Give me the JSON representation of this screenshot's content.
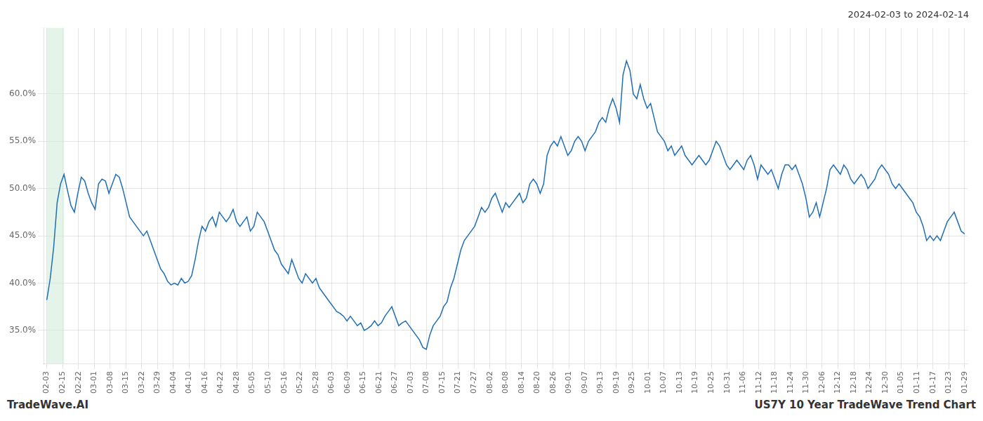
{
  "chart_data": {
    "type": "line",
    "title": "2024-02-03 to 2024-02-14",
    "annotations": [
      "TradeWave.AI",
      "US7Y 10 Year TradeWave Trend Chart"
    ],
    "color": "#1f6eb5",
    "grid": true,
    "shade": {
      "xlim": [
        0.0,
        1.1
      ],
      "color": "#d4edda"
    },
    "ylim": [
      31.5,
      67.0
    ],
    "yticks": [
      {
        "value": 35.0,
        "label": "35.0%"
      },
      {
        "value": 40.0,
        "label": "40.0%"
      },
      {
        "value": 45.0,
        "label": "45.0%"
      },
      {
        "value": 50.0,
        "label": "50.0%"
      },
      {
        "value": 55.0,
        "label": "55.0%"
      },
      {
        "value": 60.0,
        "label": "60.0%"
      }
    ],
    "xlim": [
      -0.2,
      58.2
    ],
    "xticks": [
      {
        "value": 0,
        "label": "02-03"
      },
      {
        "value": 1,
        "label": "02-15"
      },
      {
        "value": 2,
        "label": "02-22"
      },
      {
        "value": 3,
        "label": "03-01"
      },
      {
        "value": 4,
        "label": "03-08"
      },
      {
        "value": 5,
        "label": "03-15"
      },
      {
        "value": 6,
        "label": "03-22"
      },
      {
        "value": 7,
        "label": "03-29"
      },
      {
        "value": 8,
        "label": "04-04"
      },
      {
        "value": 9,
        "label": "04-10"
      },
      {
        "value": 10,
        "label": "04-16"
      },
      {
        "value": 11,
        "label": "04-22"
      },
      {
        "value": 12,
        "label": "04-28"
      },
      {
        "value": 13,
        "label": "05-05"
      },
      {
        "value": 14,
        "label": "05-10"
      },
      {
        "value": 15,
        "label": "05-16"
      },
      {
        "value": 16,
        "label": "05-22"
      },
      {
        "value": 17,
        "label": "05-28"
      },
      {
        "value": 18,
        "label": "06-03"
      },
      {
        "value": 19,
        "label": "06-09"
      },
      {
        "value": 20,
        "label": "06-15"
      },
      {
        "value": 21,
        "label": "06-21"
      },
      {
        "value": 22,
        "label": "06-27"
      },
      {
        "value": 23,
        "label": "07-03"
      },
      {
        "value": 24,
        "label": "07-08"
      },
      {
        "value": 25,
        "label": "07-15"
      },
      {
        "value": 26,
        "label": "07-21"
      },
      {
        "value": 27,
        "label": "07-27"
      },
      {
        "value": 28,
        "label": "08-02"
      },
      {
        "value": 29,
        "label": "08-08"
      },
      {
        "value": 30,
        "label": "08-14"
      },
      {
        "value": 31,
        "label": "08-20"
      },
      {
        "value": 32,
        "label": "08-26"
      },
      {
        "value": 33,
        "label": "09-01"
      },
      {
        "value": 34,
        "label": "09-07"
      },
      {
        "value": 35,
        "label": "09-13"
      },
      {
        "value": 36,
        "label": "09-19"
      },
      {
        "value": 37,
        "label": "09-25"
      },
      {
        "value": 38,
        "label": "10-01"
      },
      {
        "value": 39,
        "label": "10-07"
      },
      {
        "value": 40,
        "label": "10-13"
      },
      {
        "value": 41,
        "label": "10-19"
      },
      {
        "value": 42,
        "label": "10-25"
      },
      {
        "value": 43,
        "label": "10-31"
      },
      {
        "value": 44,
        "label": "11-06"
      },
      {
        "value": 45,
        "label": "11-12"
      },
      {
        "value": 46,
        "label": "11-18"
      },
      {
        "value": 47,
        "label": "11-24"
      },
      {
        "value": 48,
        "label": "11-30"
      },
      {
        "value": 49,
        "label": "12-06"
      },
      {
        "value": 50,
        "label": "12-12"
      },
      {
        "value": 51,
        "label": "12-18"
      },
      {
        "value": 52,
        "label": "12-24"
      },
      {
        "value": 53,
        "label": "12-30"
      },
      {
        "value": 54,
        "label": "01-05"
      },
      {
        "value": 55,
        "label": "01-11"
      },
      {
        "value": 56,
        "label": "01-17"
      },
      {
        "value": 57,
        "label": "01-23"
      },
      {
        "value": 58,
        "label": "01-29"
      }
    ],
    "values": [
      38.2,
      40.5,
      43.8,
      48.5,
      50.5,
      51.5,
      49.8,
      48.2,
      47.5,
      49.5,
      51.2,
      50.8,
      49.5,
      48.5,
      47.8,
      50.5,
      51.0,
      50.8,
      49.5,
      50.5,
      51.5,
      51.2,
      50.0,
      48.5,
      47.0,
      46.5,
      46.0,
      45.5,
      45.0,
      45.5,
      44.5,
      43.5,
      42.5,
      41.5,
      41.0,
      40.2,
      39.8,
      40.0,
      39.8,
      40.5,
      40.0,
      40.2,
      40.8,
      42.5,
      44.5,
      46.0,
      45.5,
      46.5,
      47.0,
      46.0,
      47.5,
      47.0,
      46.5,
      47.0,
      47.8,
      46.5,
      46.0,
      46.5,
      47.0,
      45.5,
      46.0,
      47.5,
      47.0,
      46.5,
      45.5,
      44.5,
      43.5,
      43.0,
      42.0,
      41.5,
      41.0,
      42.5,
      41.5,
      40.5,
      40.0,
      41.0,
      40.5,
      40.0,
      40.5,
      39.5,
      39.0,
      38.5,
      38.0,
      37.5,
      37.0,
      36.8,
      36.5,
      36.0,
      36.5,
      36.0,
      35.5,
      35.8,
      35.0,
      35.2,
      35.5,
      36.0,
      35.5,
      35.8,
      36.5,
      37.0,
      37.5,
      36.5,
      35.5,
      35.8,
      36.0,
      35.5,
      35.0,
      34.5,
      34.0,
      33.2,
      33.0,
      34.5,
      35.5,
      36.0,
      36.5,
      37.5,
      38.0,
      39.5,
      40.5,
      42.0,
      43.5,
      44.5,
      45.0,
      45.5,
      46.0,
      47.0,
      48.0,
      47.5,
      48.0,
      49.0,
      49.5,
      48.5,
      47.5,
      48.5,
      48.0,
      48.5,
      49.0,
      49.5,
      48.5,
      49.0,
      50.5,
      51.0,
      50.5,
      49.5,
      50.5,
      53.5,
      54.5,
      55.0,
      54.5,
      55.5,
      54.5,
      53.5,
      54.0,
      55.0,
      55.5,
      55.0,
      54.0,
      55.0,
      55.5,
      56.0,
      57.0,
      57.5,
      57.0,
      58.5,
      59.5,
      58.5,
      57.0,
      62.0,
      63.5,
      62.5,
      60.0,
      59.5,
      61.0,
      59.5,
      58.5,
      59.0,
      57.5,
      56.0,
      55.5,
      55.0,
      54.0,
      54.5,
      53.5,
      54.0,
      54.5,
      53.5,
      53.0,
      52.5,
      53.0,
      53.5,
      53.0,
      52.5,
      53.0,
      54.0,
      55.0,
      54.5,
      53.5,
      52.5,
      52.0,
      52.5,
      53.0,
      52.5,
      52.0,
      53.0,
      53.5,
      52.5,
      51.0,
      52.5,
      52.0,
      51.5,
      52.0,
      51.0,
      50.0,
      51.5,
      52.5,
      52.5,
      52.0,
      52.5,
      51.5,
      50.5,
      49.0,
      47.0,
      47.5,
      48.5,
      47.0,
      48.5,
      50.0,
      52.0,
      52.5,
      52.0,
      51.5,
      52.5,
      52.0,
      51.0,
      50.5,
      51.0,
      51.5,
      51.0,
      50.0,
      50.5,
      51.0,
      52.0,
      52.5,
      52.0,
      51.5,
      50.5,
      50.0,
      50.5,
      50.0,
      49.5,
      49.0,
      48.5,
      47.5,
      47.0,
      46.0,
      44.5,
      45.0,
      44.5,
      45.0,
      44.5,
      45.5,
      46.5,
      47.0,
      47.5,
      46.5,
      45.5,
      45.2
    ]
  }
}
